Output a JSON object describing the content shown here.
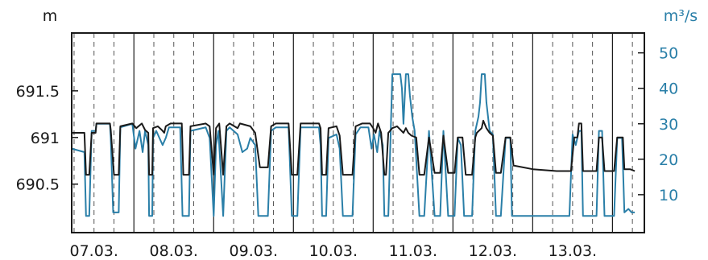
{
  "chart_data": {
    "type": "line",
    "title": "",
    "xlabel": "",
    "ylabel_left": "m",
    "ylabel_right": "m³/s",
    "grid": "vertical",
    "x_tick_labels": [
      "07.03.",
      "08.03.",
      "09.03.",
      "10.03.",
      "11.03.",
      "12.03.",
      "13.03."
    ],
    "xlim_days": [
      -0.28,
      6.9
    ],
    "y_left": {
      "ticks": [
        "691.5",
        "691",
        "690.5"
      ],
      "tick_values": [
        691.5,
        691.0,
        690.5
      ],
      "ylim": [
        689.98,
        692.12
      ]
    },
    "y_right": {
      "ticks": [
        "50",
        "40",
        "30",
        "20",
        "10"
      ],
      "tick_values": [
        50,
        40,
        30,
        20,
        10
      ],
      "ylim": [
        -0.7,
        55.6
      ]
    },
    "colors": {
      "level": "#1a1a1a",
      "discharge": "#2a7fa8",
      "grid_major": "#1a1a1a",
      "grid_minor": "#555555"
    },
    "series": [
      {
        "axis": "left",
        "points": [
          [
            -0.28,
            691.05
          ],
          [
            -0.12,
            691.05
          ],
          [
            -0.1,
            690.6
          ],
          [
            -0.06,
            690.6
          ],
          [
            -0.03,
            691.05
          ],
          [
            0.02,
            691.05
          ],
          [
            0.03,
            691.15
          ],
          [
            0.2,
            691.15
          ],
          [
            0.21,
            691.08
          ],
          [
            0.25,
            690.6
          ],
          [
            0.31,
            690.6
          ],
          [
            0.33,
            691.12
          ],
          [
            0.48,
            691.15
          ],
          [
            0.53,
            691.1
          ],
          [
            0.6,
            691.15
          ],
          [
            0.64,
            691.08
          ],
          [
            0.68,
            691.05
          ],
          [
            0.69,
            690.6
          ],
          [
            0.73,
            690.6
          ],
          [
            0.74,
            691.1
          ],
          [
            0.8,
            691.12
          ],
          [
            0.85,
            691.08
          ],
          [
            0.88,
            691.05
          ],
          [
            0.9,
            691.12
          ],
          [
            0.96,
            691.15
          ],
          [
            1.08,
            691.15
          ],
          [
            1.1,
            691.15
          ],
          [
            1.12,
            690.6
          ],
          [
            1.19,
            690.6
          ],
          [
            1.21,
            691.12
          ],
          [
            1.4,
            691.15
          ],
          [
            1.45,
            691.12
          ],
          [
            1.5,
            690.6
          ],
          [
            1.53,
            691.1
          ],
          [
            1.57,
            691.15
          ],
          [
            1.62,
            690.6
          ],
          [
            1.66,
            691.12
          ],
          [
            1.7,
            691.15
          ],
          [
            1.76,
            691.12
          ],
          [
            1.8,
            691.1
          ],
          [
            1.83,
            691.15
          ],
          [
            1.96,
            691.12
          ],
          [
            2.02,
            691.05
          ],
          [
            2.08,
            690.68
          ],
          [
            2.18,
            690.68
          ],
          [
            2.22,
            691.12
          ],
          [
            2.28,
            691.15
          ],
          [
            2.44,
            691.15
          ],
          [
            2.48,
            690.6
          ],
          [
            2.55,
            690.6
          ],
          [
            2.59,
            691.15
          ],
          [
            2.82,
            691.15
          ],
          [
            2.84,
            691.1
          ],
          [
            2.86,
            690.6
          ],
          [
            2.91,
            690.6
          ],
          [
            2.94,
            691.1
          ],
          [
            3.04,
            691.12
          ],
          [
            3.08,
            691.02
          ],
          [
            3.12,
            690.6
          ],
          [
            3.24,
            690.6
          ],
          [
            3.28,
            691.12
          ],
          [
            3.36,
            691.15
          ],
          [
            3.46,
            691.15
          ],
          [
            3.5,
            691.1
          ],
          [
            3.53,
            691.05
          ],
          [
            3.56,
            691.15
          ],
          [
            3.6,
            691.05
          ],
          [
            3.64,
            690.6
          ],
          [
            3.66,
            690.6
          ],
          [
            3.69,
            691.05
          ],
          [
            3.74,
            691.1
          ],
          [
            3.8,
            691.12
          ],
          [
            3.88,
            691.05
          ],
          [
            3.91,
            691.1
          ],
          [
            3.94,
            691.05
          ],
          [
            3.98,
            691.02
          ],
          [
            4.04,
            691.0
          ],
          [
            4.08,
            690.6
          ],
          [
            4.14,
            690.6
          ],
          [
            4.2,
            691.0
          ],
          [
            4.27,
            690.62
          ],
          [
            4.34,
            690.62
          ],
          [
            4.38,
            691.02
          ],
          [
            4.44,
            690.62
          ],
          [
            4.52,
            690.62
          ],
          [
            4.56,
            691.0
          ],
          [
            4.62,
            691.0
          ],
          [
            4.66,
            690.6
          ],
          [
            4.74,
            690.6
          ],
          [
            4.78,
            691.0
          ],
          [
            4.8,
            691.05
          ],
          [
            4.86,
            691.1
          ],
          [
            4.88,
            691.18
          ],
          [
            4.92,
            691.1
          ],
          [
            4.96,
            691.05
          ],
          [
            5.0,
            691.02
          ],
          [
            5.04,
            690.62
          ],
          [
            5.1,
            690.62
          ],
          [
            5.16,
            691.0
          ],
          [
            5.22,
            691.0
          ],
          [
            5.26,
            690.7
          ],
          [
            5.5,
            690.66
          ],
          [
            5.8,
            690.64
          ],
          [
            5.98,
            690.64
          ],
          [
            6.02,
            691.0
          ],
          [
            6.06,
            691.0
          ],
          [
            6.08,
            691.15
          ],
          [
            6.11,
            691.15
          ],
          [
            6.13,
            690.64
          ],
          [
            6.22,
            690.64
          ],
          [
            6.3,
            690.64
          ],
          [
            6.33,
            691.0
          ],
          [
            6.37,
            691.0
          ],
          [
            6.4,
            690.64
          ],
          [
            6.52,
            690.64
          ],
          [
            6.56,
            691.0
          ],
          [
            6.63,
            691.0
          ],
          [
            6.65,
            690.66
          ],
          [
            6.72,
            690.66
          ],
          [
            6.78,
            690.64
          ]
        ]
      },
      {
        "axis": "right",
        "points": [
          [
            -0.28,
            23.0
          ],
          [
            -0.12,
            22.0
          ],
          [
            -0.1,
            4.0
          ],
          [
            -0.06,
            4.0
          ],
          [
            -0.03,
            28.0
          ],
          [
            0.02,
            28.0
          ],
          [
            0.03,
            30.0
          ],
          [
            0.2,
            30.0
          ],
          [
            0.21,
            26.0
          ],
          [
            0.24,
            5.0
          ],
          [
            0.31,
            5.0
          ],
          [
            0.33,
            29.0
          ],
          [
            0.48,
            30.0
          ],
          [
            0.52,
            23.0
          ],
          [
            0.57,
            28.0
          ],
          [
            0.61,
            22.0
          ],
          [
            0.64,
            28.0
          ],
          [
            0.68,
            24.0
          ],
          [
            0.69,
            4.0
          ],
          [
            0.73,
            4.0
          ],
          [
            0.74,
            26.0
          ],
          [
            0.78,
            28.0
          ],
          [
            0.82,
            26.0
          ],
          [
            0.86,
            24.0
          ],
          [
            0.9,
            26.0
          ],
          [
            0.94,
            29.0
          ],
          [
            1.08,
            29.0
          ],
          [
            1.11,
            4.0
          ],
          [
            1.19,
            4.0
          ],
          [
            1.21,
            28.0
          ],
          [
            1.4,
            29.0
          ],
          [
            1.45,
            26.0
          ],
          [
            1.5,
            4.0
          ],
          [
            1.53,
            24.0
          ],
          [
            1.56,
            28.0
          ],
          [
            1.62,
            4.0
          ],
          [
            1.66,
            28.0
          ],
          [
            1.7,
            29.0
          ],
          [
            1.8,
            27.0
          ],
          [
            1.86,
            22.0
          ],
          [
            1.92,
            23.0
          ],
          [
            1.96,
            26.0
          ],
          [
            2.02,
            24.0
          ],
          [
            2.06,
            4.0
          ],
          [
            2.18,
            4.0
          ],
          [
            2.22,
            28.0
          ],
          [
            2.28,
            29.0
          ],
          [
            2.44,
            29.0
          ],
          [
            2.48,
            4.0
          ],
          [
            2.55,
            4.0
          ],
          [
            2.59,
            29.0
          ],
          [
            2.82,
            29.0
          ],
          [
            2.84,
            24.0
          ],
          [
            2.86,
            4.0
          ],
          [
            2.91,
            4.0
          ],
          [
            2.94,
            26.0
          ],
          [
            3.04,
            27.0
          ],
          [
            3.08,
            23.0
          ],
          [
            3.12,
            4.0
          ],
          [
            3.24,
            4.0
          ],
          [
            3.28,
            27.0
          ],
          [
            3.34,
            29.0
          ],
          [
            3.44,
            29.0
          ],
          [
            3.48,
            23.0
          ],
          [
            3.51,
            27.0
          ],
          [
            3.55,
            22.0
          ],
          [
            3.58,
            28.0
          ],
          [
            3.62,
            24.0
          ],
          [
            3.64,
            4.0
          ],
          [
            3.69,
            4.0
          ],
          [
            3.74,
            44.0
          ],
          [
            3.84,
            44.0
          ],
          [
            3.86,
            40.0
          ],
          [
            3.88,
            30.0
          ],
          [
            3.91,
            44.0
          ],
          [
            3.94,
            44.0
          ],
          [
            3.96,
            38.0
          ],
          [
            3.99,
            32.0
          ],
          [
            4.02,
            28.0
          ],
          [
            4.08,
            4.0
          ],
          [
            4.14,
            4.0
          ],
          [
            4.2,
            28.0
          ],
          [
            4.27,
            4.0
          ],
          [
            4.34,
            4.0
          ],
          [
            4.38,
            28.0
          ],
          [
            4.44,
            4.0
          ],
          [
            4.52,
            4.0
          ],
          [
            4.56,
            26.0
          ],
          [
            4.6,
            24.0
          ],
          [
            4.64,
            4.0
          ],
          [
            4.74,
            4.0
          ],
          [
            4.78,
            28.0
          ],
          [
            4.82,
            32.0
          ],
          [
            4.84,
            36.0
          ],
          [
            4.86,
            44.0
          ],
          [
            4.9,
            44.0
          ],
          [
            4.92,
            36.0
          ],
          [
            4.96,
            28.0
          ],
          [
            5.0,
            27.0
          ],
          [
            5.04,
            4.0
          ],
          [
            5.1,
            4.0
          ],
          [
            5.16,
            26.0
          ],
          [
            5.22,
            26.0
          ],
          [
            5.24,
            4.0
          ],
          [
            5.6,
            4.0
          ],
          [
            5.7,
            4.0
          ],
          [
            5.96,
            4.0
          ],
          [
            6.0,
            27.0
          ],
          [
            6.04,
            24.0
          ],
          [
            6.08,
            28.0
          ],
          [
            6.11,
            28.0
          ],
          [
            6.13,
            4.0
          ],
          [
            6.3,
            4.0
          ],
          [
            6.33,
            28.0
          ],
          [
            6.37,
            28.0
          ],
          [
            6.4,
            4.0
          ],
          [
            6.52,
            4.0
          ],
          [
            6.56,
            26.0
          ],
          [
            6.62,
            26.0
          ],
          [
            6.65,
            5.0
          ],
          [
            6.7,
            6.0
          ],
          [
            6.74,
            5.0
          ],
          [
            6.78,
            5.0
          ]
        ]
      }
    ]
  }
}
